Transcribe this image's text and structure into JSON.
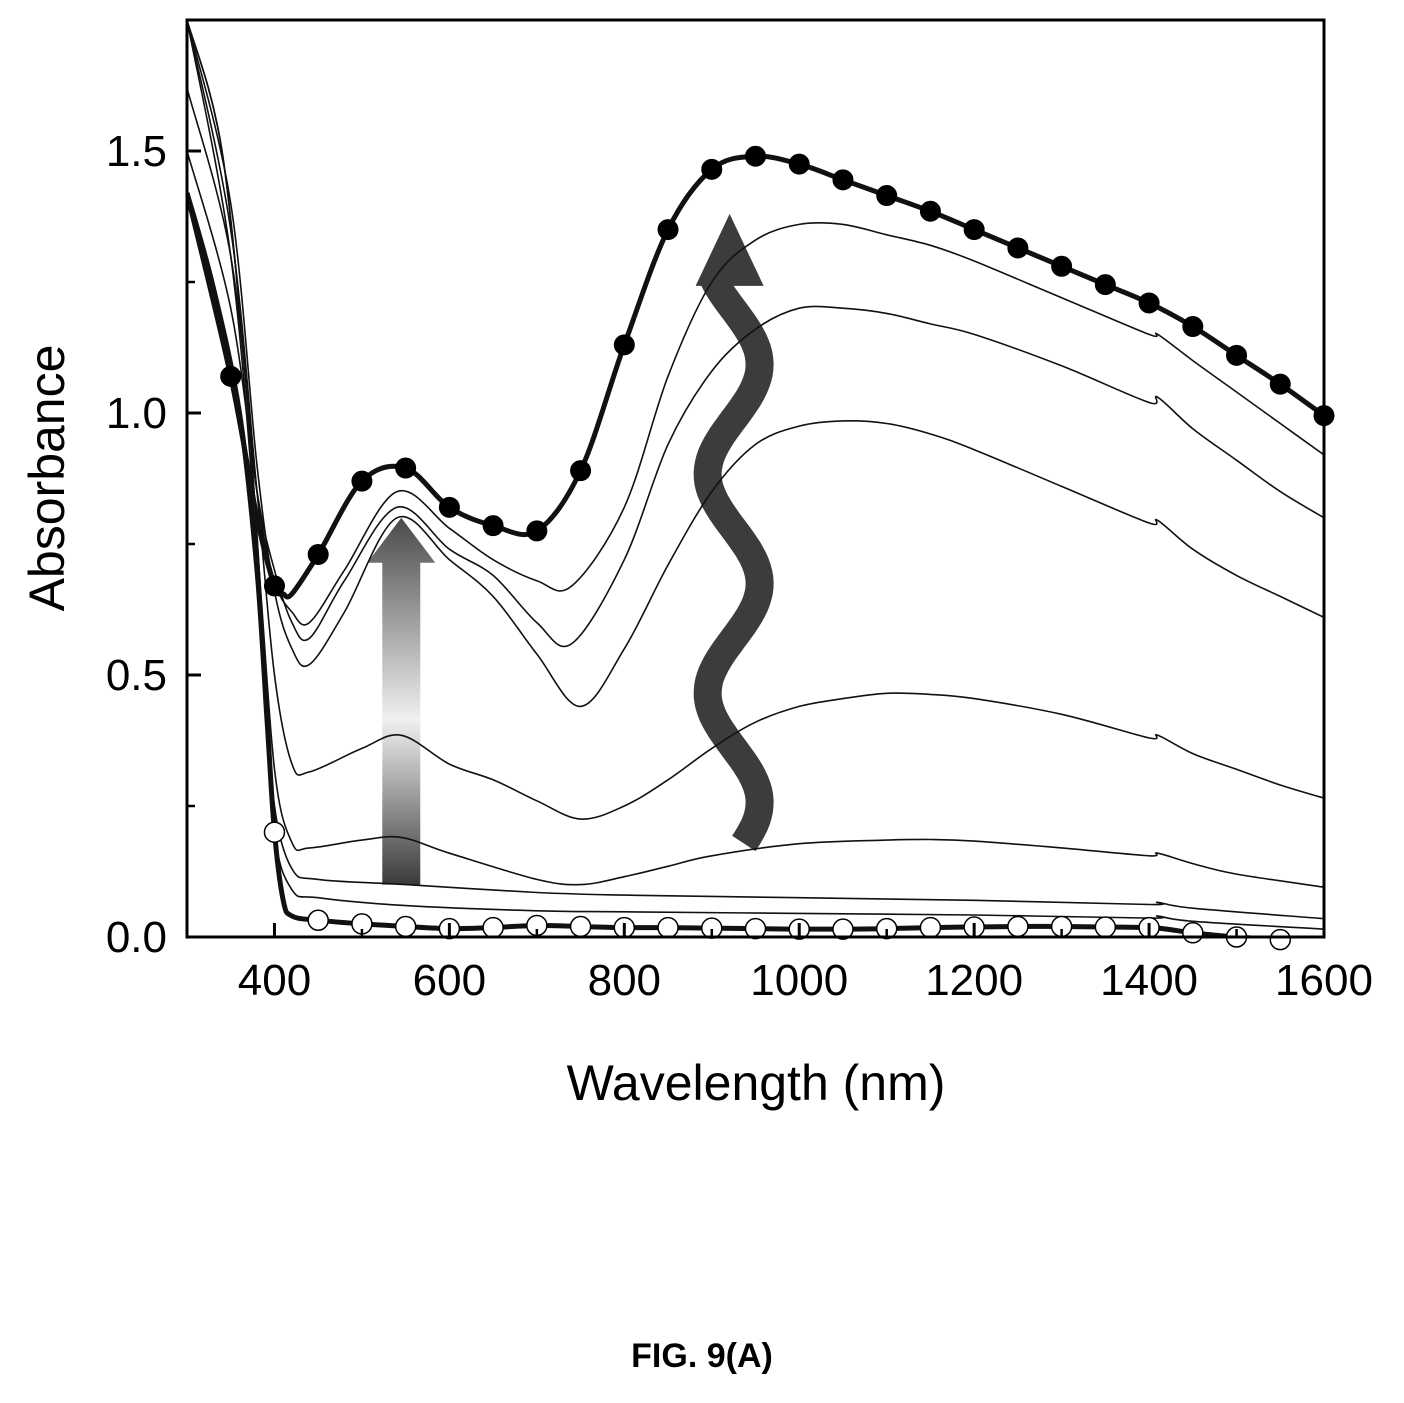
{
  "figure": {
    "caption": "FIG. 9(A)"
  },
  "chart_data": {
    "type": "line",
    "title": "",
    "xlabel": "Wavelength (nm)",
    "ylabel": "Absorbance",
    "xlim": [
      300,
      1600
    ],
    "ylim": [
      0,
      1.75
    ],
    "xticks": [
      400,
      600,
      800,
      1000,
      1200,
      1400,
      1600
    ],
    "xtick_labels": [
      "400",
      "600",
      "800",
      "1000",
      "1200",
      "1400",
      "1600"
    ],
    "yticks": [
      0.0,
      0.5,
      1.0,
      1.5
    ],
    "ytick_labels": [
      "0.0",
      "0.5",
      "1.0",
      "1.5"
    ],
    "grid": false,
    "legend": "none",
    "annotations": [
      {
        "type": "straight-arrow",
        "direction": "up",
        "at_x": 545,
        "from_y": 0.1,
        "to_y": 0.8,
        "style": "gradient"
      },
      {
        "type": "wavy-arrow",
        "direction": "up",
        "at_x": 925,
        "from_y": 0.15,
        "to_y": 1.38,
        "style": "dark"
      }
    ],
    "series": [
      {
        "role": "initial",
        "style": "thick",
        "marker": "open-circle",
        "x": [
          300,
          330,
          360,
          380,
          392,
          400,
          410,
          420,
          450,
          500,
          550,
          600,
          650,
          700,
          750,
          800,
          850,
          900,
          950,
          1000,
          1050,
          1100,
          1150,
          1200,
          1250,
          1300,
          1350,
          1400,
          1420,
          1450,
          1500,
          1550,
          1600
        ],
        "y": [
          1.42,
          1.24,
          1.0,
          0.7,
          0.4,
          0.2,
          0.07,
          0.04,
          0.032,
          0.025,
          0.02,
          0.016,
          0.018,
          0.022,
          0.02,
          0.018,
          0.018,
          0.017,
          0.016,
          0.015,
          0.015,
          0.016,
          0.018,
          0.019,
          0.02,
          0.02,
          0.019,
          0.018,
          0.015,
          0.008,
          0.0,
          -0.005,
          -0.01
        ],
        "markers_x": [
          400,
          450,
          500,
          550,
          600,
          650,
          700,
          750,
          800,
          850,
          900,
          950,
          1000,
          1050,
          1100,
          1150,
          1200,
          1250,
          1300,
          1350,
          1400,
          1450,
          1500,
          1550
        ],
        "markers_y": [
          0.2,
          0.032,
          0.025,
          0.02,
          0.016,
          0.018,
          0.022,
          0.02,
          0.018,
          0.018,
          0.017,
          0.016,
          0.015,
          0.015,
          0.016,
          0.018,
          0.019,
          0.02,
          0.02,
          0.019,
          0.018,
          0.008,
          0.0,
          -0.005
        ]
      },
      {
        "role": "intermediate",
        "style": "thin",
        "x": [
          300,
          340,
          370,
          390,
          400,
          420,
          450,
          550,
          700,
          800,
          1000,
          1200,
          1400,
          1410,
          1450,
          1600
        ],
        "y": [
          1.75,
          1.5,
          1.0,
          0.5,
          0.2,
          0.09,
          0.075,
          0.06,
          0.05,
          0.048,
          0.045,
          0.042,
          0.036,
          0.04,
          0.03,
          0.015
        ]
      },
      {
        "role": "intermediate",
        "style": "thin",
        "x": [
          300,
          340,
          370,
          390,
          400,
          420,
          450,
          550,
          700,
          800,
          1000,
          1200,
          1400,
          1410,
          1450,
          1600
        ],
        "y": [
          1.75,
          1.5,
          1.0,
          0.5,
          0.25,
          0.13,
          0.11,
          0.1,
          0.085,
          0.08,
          0.075,
          0.07,
          0.062,
          0.066,
          0.055,
          0.035
        ]
      },
      {
        "role": "intermediate",
        "style": "thin",
        "x": [
          300,
          350,
          380,
          400,
          420,
          440,
          500,
          545,
          600,
          700,
          750,
          800,
          850,
          900,
          1000,
          1100,
          1150,
          1200,
          1300,
          1400,
          1410,
          1450,
          1500,
          1600
        ],
        "y": [
          1.75,
          1.3,
          0.75,
          0.32,
          0.18,
          0.17,
          0.185,
          0.19,
          0.16,
          0.11,
          0.1,
          0.115,
          0.135,
          0.155,
          0.178,
          0.185,
          0.186,
          0.183,
          0.17,
          0.155,
          0.16,
          0.14,
          0.12,
          0.095
        ]
      },
      {
        "role": "intermediate",
        "style": "thin",
        "x": [
          300,
          350,
          380,
          400,
          420,
          440,
          500,
          545,
          600,
          650,
          700,
          750,
          800,
          850,
          900,
          950,
          1000,
          1050,
          1100,
          1150,
          1200,
          1300,
          1400,
          1410,
          1450,
          1500,
          1550,
          1600
        ],
        "y": [
          1.75,
          1.35,
          0.85,
          0.5,
          0.33,
          0.315,
          0.36,
          0.385,
          0.33,
          0.3,
          0.26,
          0.225,
          0.25,
          0.3,
          0.36,
          0.41,
          0.44,
          0.455,
          0.465,
          0.463,
          0.455,
          0.425,
          0.38,
          0.385,
          0.35,
          0.32,
          0.29,
          0.265
        ]
      },
      {
        "role": "intermediate",
        "style": "thin",
        "x": [
          300,
          350,
          380,
          400,
          420,
          440,
          480,
          540,
          600,
          650,
          700,
          750,
          800,
          850,
          900,
          950,
          1000,
          1050,
          1100,
          1150,
          1200,
          1300,
          1400,
          1410,
          1450,
          1500,
          1550,
          1600
        ],
        "y": [
          1.75,
          1.4,
          0.9,
          0.66,
          0.55,
          0.52,
          0.62,
          0.8,
          0.72,
          0.65,
          0.54,
          0.44,
          0.55,
          0.71,
          0.85,
          0.94,
          0.975,
          0.985,
          0.98,
          0.96,
          0.93,
          0.86,
          0.79,
          0.795,
          0.74,
          0.69,
          0.65,
          0.61
        ]
      },
      {
        "role": "intermediate",
        "style": "thin",
        "x": [
          300,
          350,
          380,
          400,
          420,
          440,
          480,
          540,
          600,
          650,
          700,
          740,
          800,
          850,
          900,
          950,
          1000,
          1050,
          1100,
          1150,
          1200,
          1300,
          1400,
          1410,
          1450,
          1500,
          1550,
          1600
        ],
        "y": [
          1.5,
          1.2,
          0.85,
          0.7,
          0.6,
          0.57,
          0.68,
          0.82,
          0.74,
          0.69,
          0.6,
          0.56,
          0.72,
          0.94,
          1.08,
          1.16,
          1.2,
          1.2,
          1.19,
          1.17,
          1.15,
          1.09,
          1.02,
          1.03,
          0.97,
          0.91,
          0.85,
          0.8
        ]
      },
      {
        "role": "intermediate",
        "style": "thin",
        "x": [
          300,
          350,
          380,
          400,
          420,
          440,
          480,
          540,
          600,
          650,
          700,
          740,
          800,
          850,
          900,
          950,
          1000,
          1050,
          1100,
          1150,
          1200,
          1300,
          1400,
          1410,
          1450,
          1500,
          1550,
          1600
        ],
        "y": [
          1.62,
          1.3,
          0.85,
          0.68,
          0.62,
          0.6,
          0.7,
          0.85,
          0.78,
          0.72,
          0.68,
          0.67,
          0.82,
          1.07,
          1.25,
          1.33,
          1.36,
          1.36,
          1.34,
          1.32,
          1.29,
          1.22,
          1.15,
          1.15,
          1.1,
          1.04,
          0.98,
          0.92
        ]
      },
      {
        "role": "final",
        "style": "thick",
        "marker": "filled-circle",
        "x": [
          300,
          350,
          380,
          400,
          410,
          420,
          450,
          500,
          550,
          600,
          650,
          700,
          750,
          800,
          850,
          900,
          950,
          1000,
          1050,
          1100,
          1150,
          1200,
          1250,
          1300,
          1350,
          1400,
          1450,
          1500,
          1550,
          1600
        ],
        "y": [
          1.42,
          1.07,
          0.8,
          0.67,
          0.655,
          0.655,
          0.73,
          0.87,
          0.895,
          0.82,
          0.785,
          0.775,
          0.89,
          1.13,
          1.35,
          1.465,
          1.49,
          1.475,
          1.445,
          1.415,
          1.385,
          1.35,
          1.315,
          1.28,
          1.245,
          1.21,
          1.165,
          1.11,
          1.055,
          0.995
        ],
        "markers_x": [
          350,
          400,
          450,
          500,
          550,
          600,
          650,
          700,
          750,
          800,
          850,
          900,
          950,
          1000,
          1050,
          1100,
          1150,
          1200,
          1250,
          1300,
          1350,
          1400,
          1450,
          1500,
          1550,
          1600
        ],
        "markers_y": [
          1.07,
          0.67,
          0.73,
          0.87,
          0.895,
          0.82,
          0.785,
          0.775,
          0.89,
          1.13,
          1.35,
          1.465,
          1.49,
          1.475,
          1.445,
          1.415,
          1.385,
          1.35,
          1.315,
          1.28,
          1.245,
          1.21,
          1.165,
          1.11,
          1.055,
          0.995
        ]
      }
    ]
  }
}
